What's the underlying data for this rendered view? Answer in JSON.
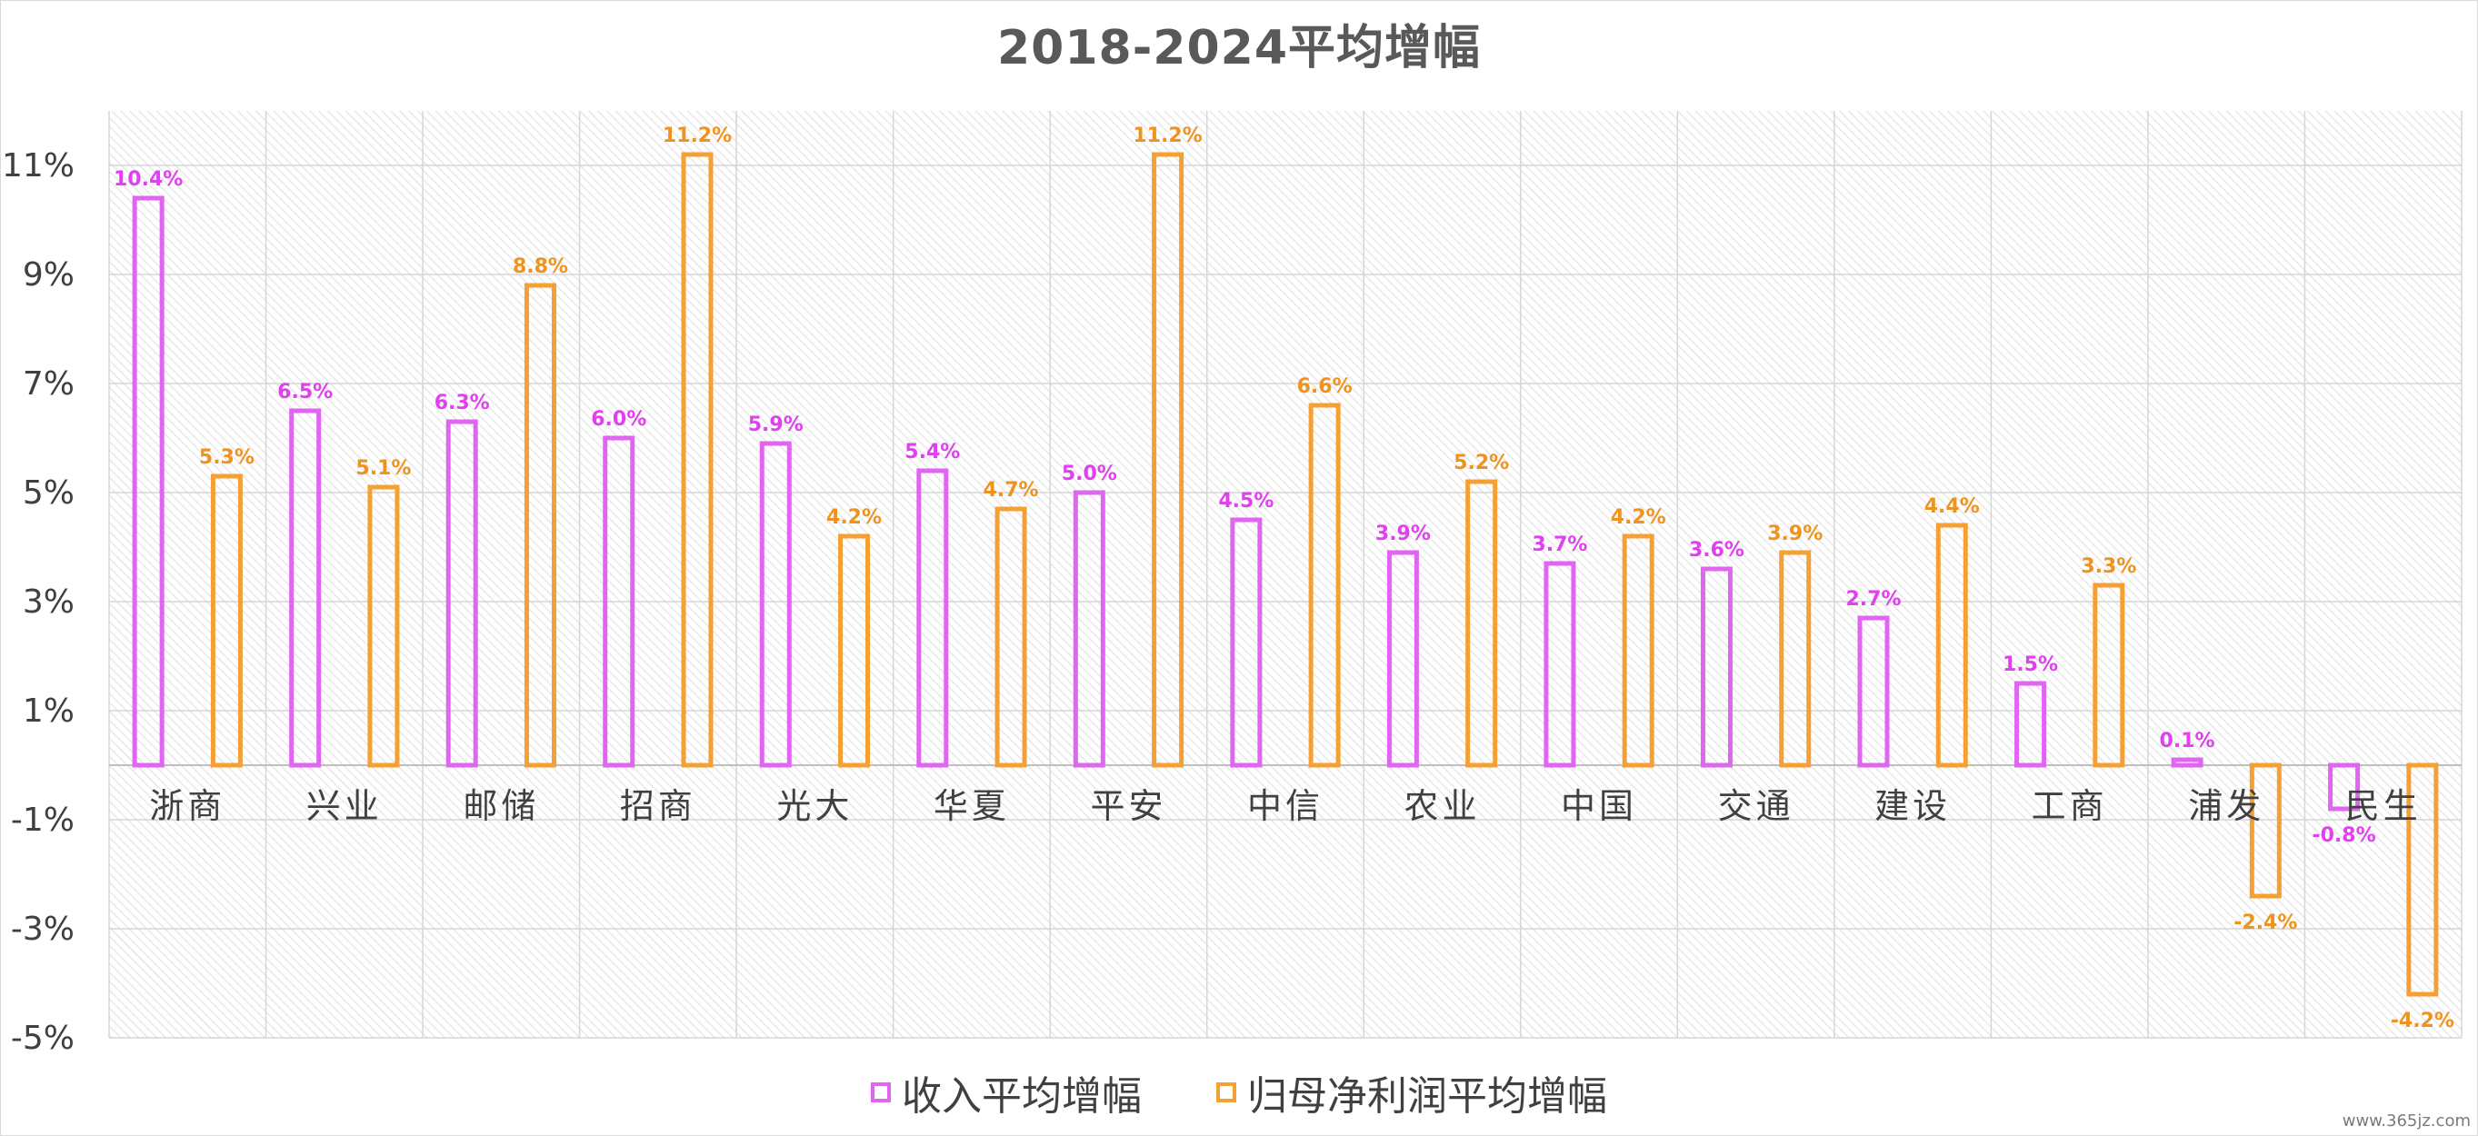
{
  "chart_data": {
    "type": "bar",
    "title": "2018-2024平均增幅",
    "categories": [
      "浙商",
      "兴业",
      "邮储",
      "招商",
      "光大",
      "华夏",
      "平安",
      "中信",
      "农业",
      "中国",
      "交通",
      "建设",
      "工商",
      "浦发",
      "民生"
    ],
    "series": [
      {
        "name": "收入平均增幅",
        "color": "#e066f2",
        "values": [
          10.4,
          6.5,
          6.3,
          6.0,
          5.9,
          5.4,
          5.0,
          4.5,
          3.9,
          3.7,
          3.6,
          2.7,
          1.5,
          0.1,
          -0.8
        ]
      },
      {
        "name": "归母净利润平均增幅",
        "color": "#f5a035",
        "values": [
          5.3,
          5.1,
          8.8,
          11.2,
          4.2,
          4.7,
          11.2,
          6.6,
          5.2,
          4.2,
          3.9,
          4.4,
          3.3,
          -2.4,
          -4.2
        ]
      }
    ],
    "yticks": [
      "11%",
      "9%",
      "7%",
      "5%",
      "3%",
      "1%",
      "-1%",
      "-3%",
      "-5%"
    ],
    "ylim": [
      -5,
      12
    ],
    "value_suffix": "%",
    "xlabel": "",
    "ylabel": "",
    "grid": true,
    "legend_position": "bottom"
  },
  "watermark": "www.365jz.com"
}
